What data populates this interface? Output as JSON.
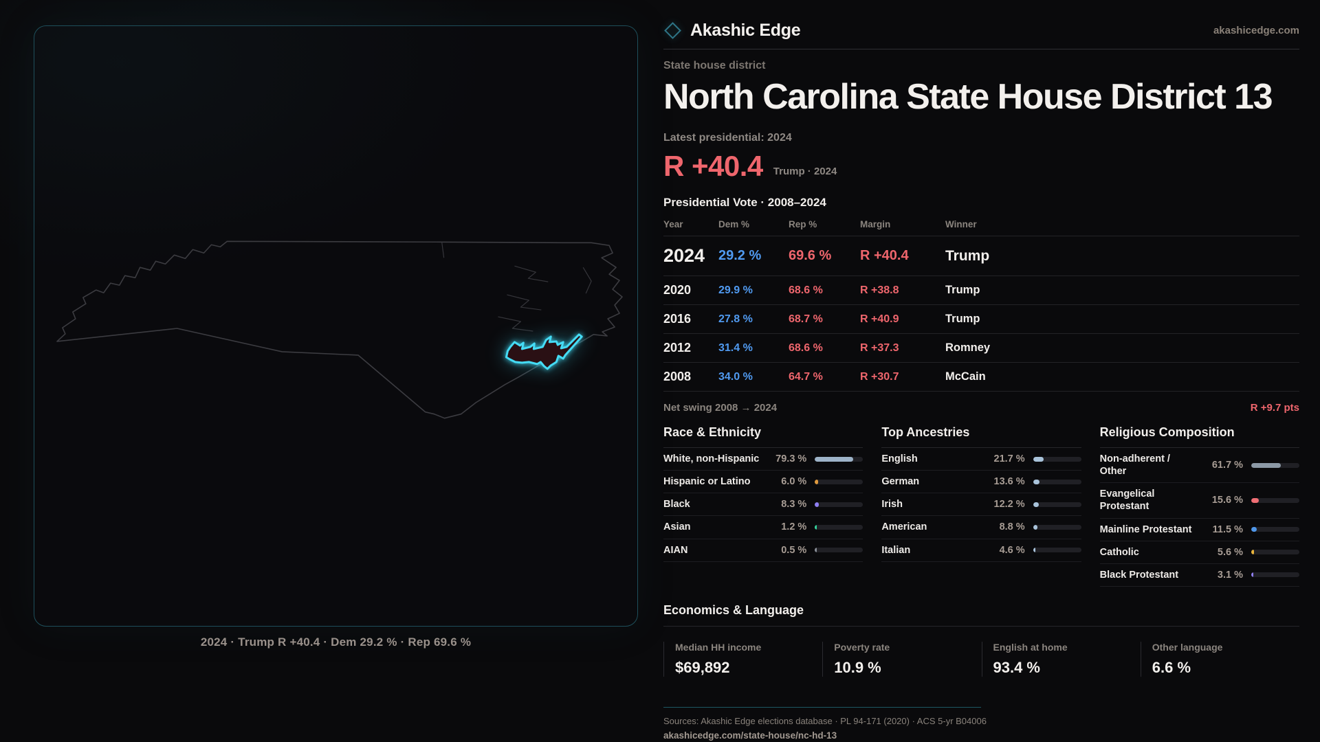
{
  "colors": {
    "cyan": "#45dcf5",
    "red": "#ef666d",
    "blue": "#509af0",
    "teal_border": "#1e4f5b"
  },
  "brand": {
    "name": "Akashic Edge",
    "domain": "akashicedge.com"
  },
  "page": {
    "kicker": "State house district",
    "title": "North Carolina State House District 13",
    "latest_label": "Latest presidential: 2024",
    "headline_margin": "R +40.4",
    "headline_caption": "Trump · 2024",
    "table_title": "Presidential Vote · 2008–2024"
  },
  "map": {
    "caption": "2024 · Trump R +40.4 · Dem 29.2 % · Rep 69.6 %"
  },
  "vote_table": {
    "columns": [
      "Year",
      "Dem %",
      "Rep %",
      "Margin",
      "Winner"
    ],
    "rows": [
      {
        "year": "2024",
        "dem": "29.2 %",
        "rep": "69.6 %",
        "margin": "R +40.4",
        "winner": "Trump",
        "emphasis": true
      },
      {
        "year": "2020",
        "dem": "29.9 %",
        "rep": "68.6 %",
        "margin": "R +38.8",
        "winner": "Trump",
        "emphasis": false
      },
      {
        "year": "2016",
        "dem": "27.8 %",
        "rep": "68.7 %",
        "margin": "R +40.9",
        "winner": "Trump",
        "emphasis": false
      },
      {
        "year": "2012",
        "dem": "31.4 %",
        "rep": "68.6 %",
        "margin": "R +37.3",
        "winner": "Romney",
        "emphasis": false
      },
      {
        "year": "2008",
        "dem": "34.0 %",
        "rep": "64.7 %",
        "margin": "R +30.7",
        "winner": "McCain",
        "emphasis": false
      }
    ],
    "net_swing_label": "Net swing 2008 → 2024",
    "net_swing_value": "R +9.7 pts"
  },
  "demographics": [
    {
      "title": "Race & Ethnicity",
      "rows": [
        {
          "label": "White, non-Hispanic",
          "value": "79.3 %",
          "pct": 79.3,
          "color": "#9db3c8"
        },
        {
          "label": "Hispanic or Latino",
          "value": "6.0 %",
          "pct": 6.0,
          "color": "#e09a3e"
        },
        {
          "label": "Black",
          "value": "8.3 %",
          "pct": 8.3,
          "color": "#8f7ff2"
        },
        {
          "label": "Asian",
          "value": "1.2 %",
          "pct": 1.2,
          "color": "#35d39c"
        },
        {
          "label": "AIAN",
          "value": "0.5 %",
          "pct": 0.5,
          "color": "#8a8f98"
        }
      ]
    },
    {
      "title": "Top Ancestries",
      "rows": [
        {
          "label": "English",
          "value": "21.7 %",
          "pct": 21.7,
          "color": "#a9c3da"
        },
        {
          "label": "German",
          "value": "13.6 %",
          "pct": 13.6,
          "color": "#a9c3da"
        },
        {
          "label": "Irish",
          "value": "12.2 %",
          "pct": 12.2,
          "color": "#a9c3da"
        },
        {
          "label": "American",
          "value": "8.8 %",
          "pct": 8.8,
          "color": "#a9c3da"
        },
        {
          "label": "Italian",
          "value": "4.6 %",
          "pct": 4.6,
          "color": "#a9c3da"
        }
      ]
    },
    {
      "title": "Religious Composition",
      "rows": [
        {
          "label": "Non-adherent / Other",
          "value": "61.7 %",
          "pct": 61.7,
          "color": "#8c99a6"
        },
        {
          "label": "Evangelical Protestant",
          "value": "15.6 %",
          "pct": 15.6,
          "color": "#ef6e74"
        },
        {
          "label": "Mainline Protestant",
          "value": "11.5 %",
          "pct": 11.5,
          "color": "#4f96e8"
        },
        {
          "label": "Catholic",
          "value": "5.6 %",
          "pct": 5.6,
          "color": "#e8b43c"
        },
        {
          "label": "Black Protestant",
          "value": "3.1 %",
          "pct": 3.1,
          "color": "#8f7ff2"
        }
      ]
    }
  ],
  "economics": {
    "title": "Economics & Language",
    "stats": [
      {
        "label": "Median HH income",
        "value": "$69,892"
      },
      {
        "label": "Poverty rate",
        "value": "10.9 %"
      },
      {
        "label": "English at home",
        "value": "93.4 %"
      },
      {
        "label": "Other language",
        "value": "6.6 %"
      }
    ]
  },
  "footer": {
    "sources": "Sources: Akashic Edge elections database · PL 94-171 (2020) · ACS 5-yr B04006",
    "link": "akashicedge.com/state-house/nc-hd-13"
  }
}
